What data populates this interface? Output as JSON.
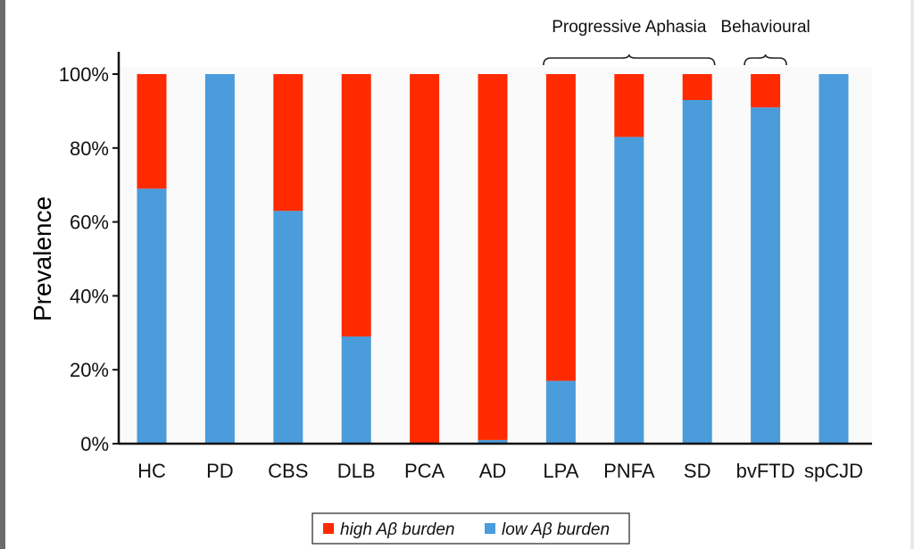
{
  "chart_data": {
    "type": "bar",
    "stacked": true,
    "ylabel": "Prevalence",
    "xlabel": "",
    "ylim": [
      0,
      100
    ],
    "y_ticks": [
      "0%",
      "20%",
      "40%",
      "60%",
      "80%",
      "100%"
    ],
    "categories": [
      "HC",
      "PD",
      "CBS",
      "DLB",
      "PCA",
      "AD",
      "LPA",
      "PNFA",
      "SD",
      "bvFTD",
      "spCJD"
    ],
    "series": [
      {
        "name": "low Aβ burden",
        "color": "#4a9cdb",
        "values": [
          69,
          100,
          63,
          29,
          0,
          1,
          17,
          83,
          93,
          91,
          100
        ]
      },
      {
        "name": "high Aβ burden",
        "color": "#ff2a00",
        "values": [
          31,
          0,
          37,
          71,
          100,
          99,
          83,
          17,
          7,
          9,
          0
        ]
      }
    ],
    "group_labels": [
      {
        "text": "Progressive Aphasia",
        "from": "LPA",
        "to": "SD"
      },
      {
        "text": "Behavioural",
        "from": "bvFTD",
        "to": "bvFTD"
      }
    ],
    "legend": {
      "position": "bottom-center",
      "entries": [
        {
          "label": "high Aβ burden",
          "color": "#ff2a00"
        },
        {
          "label": "low Aβ burden",
          "color": "#4a9cdb"
        }
      ]
    },
    "grid": false
  }
}
